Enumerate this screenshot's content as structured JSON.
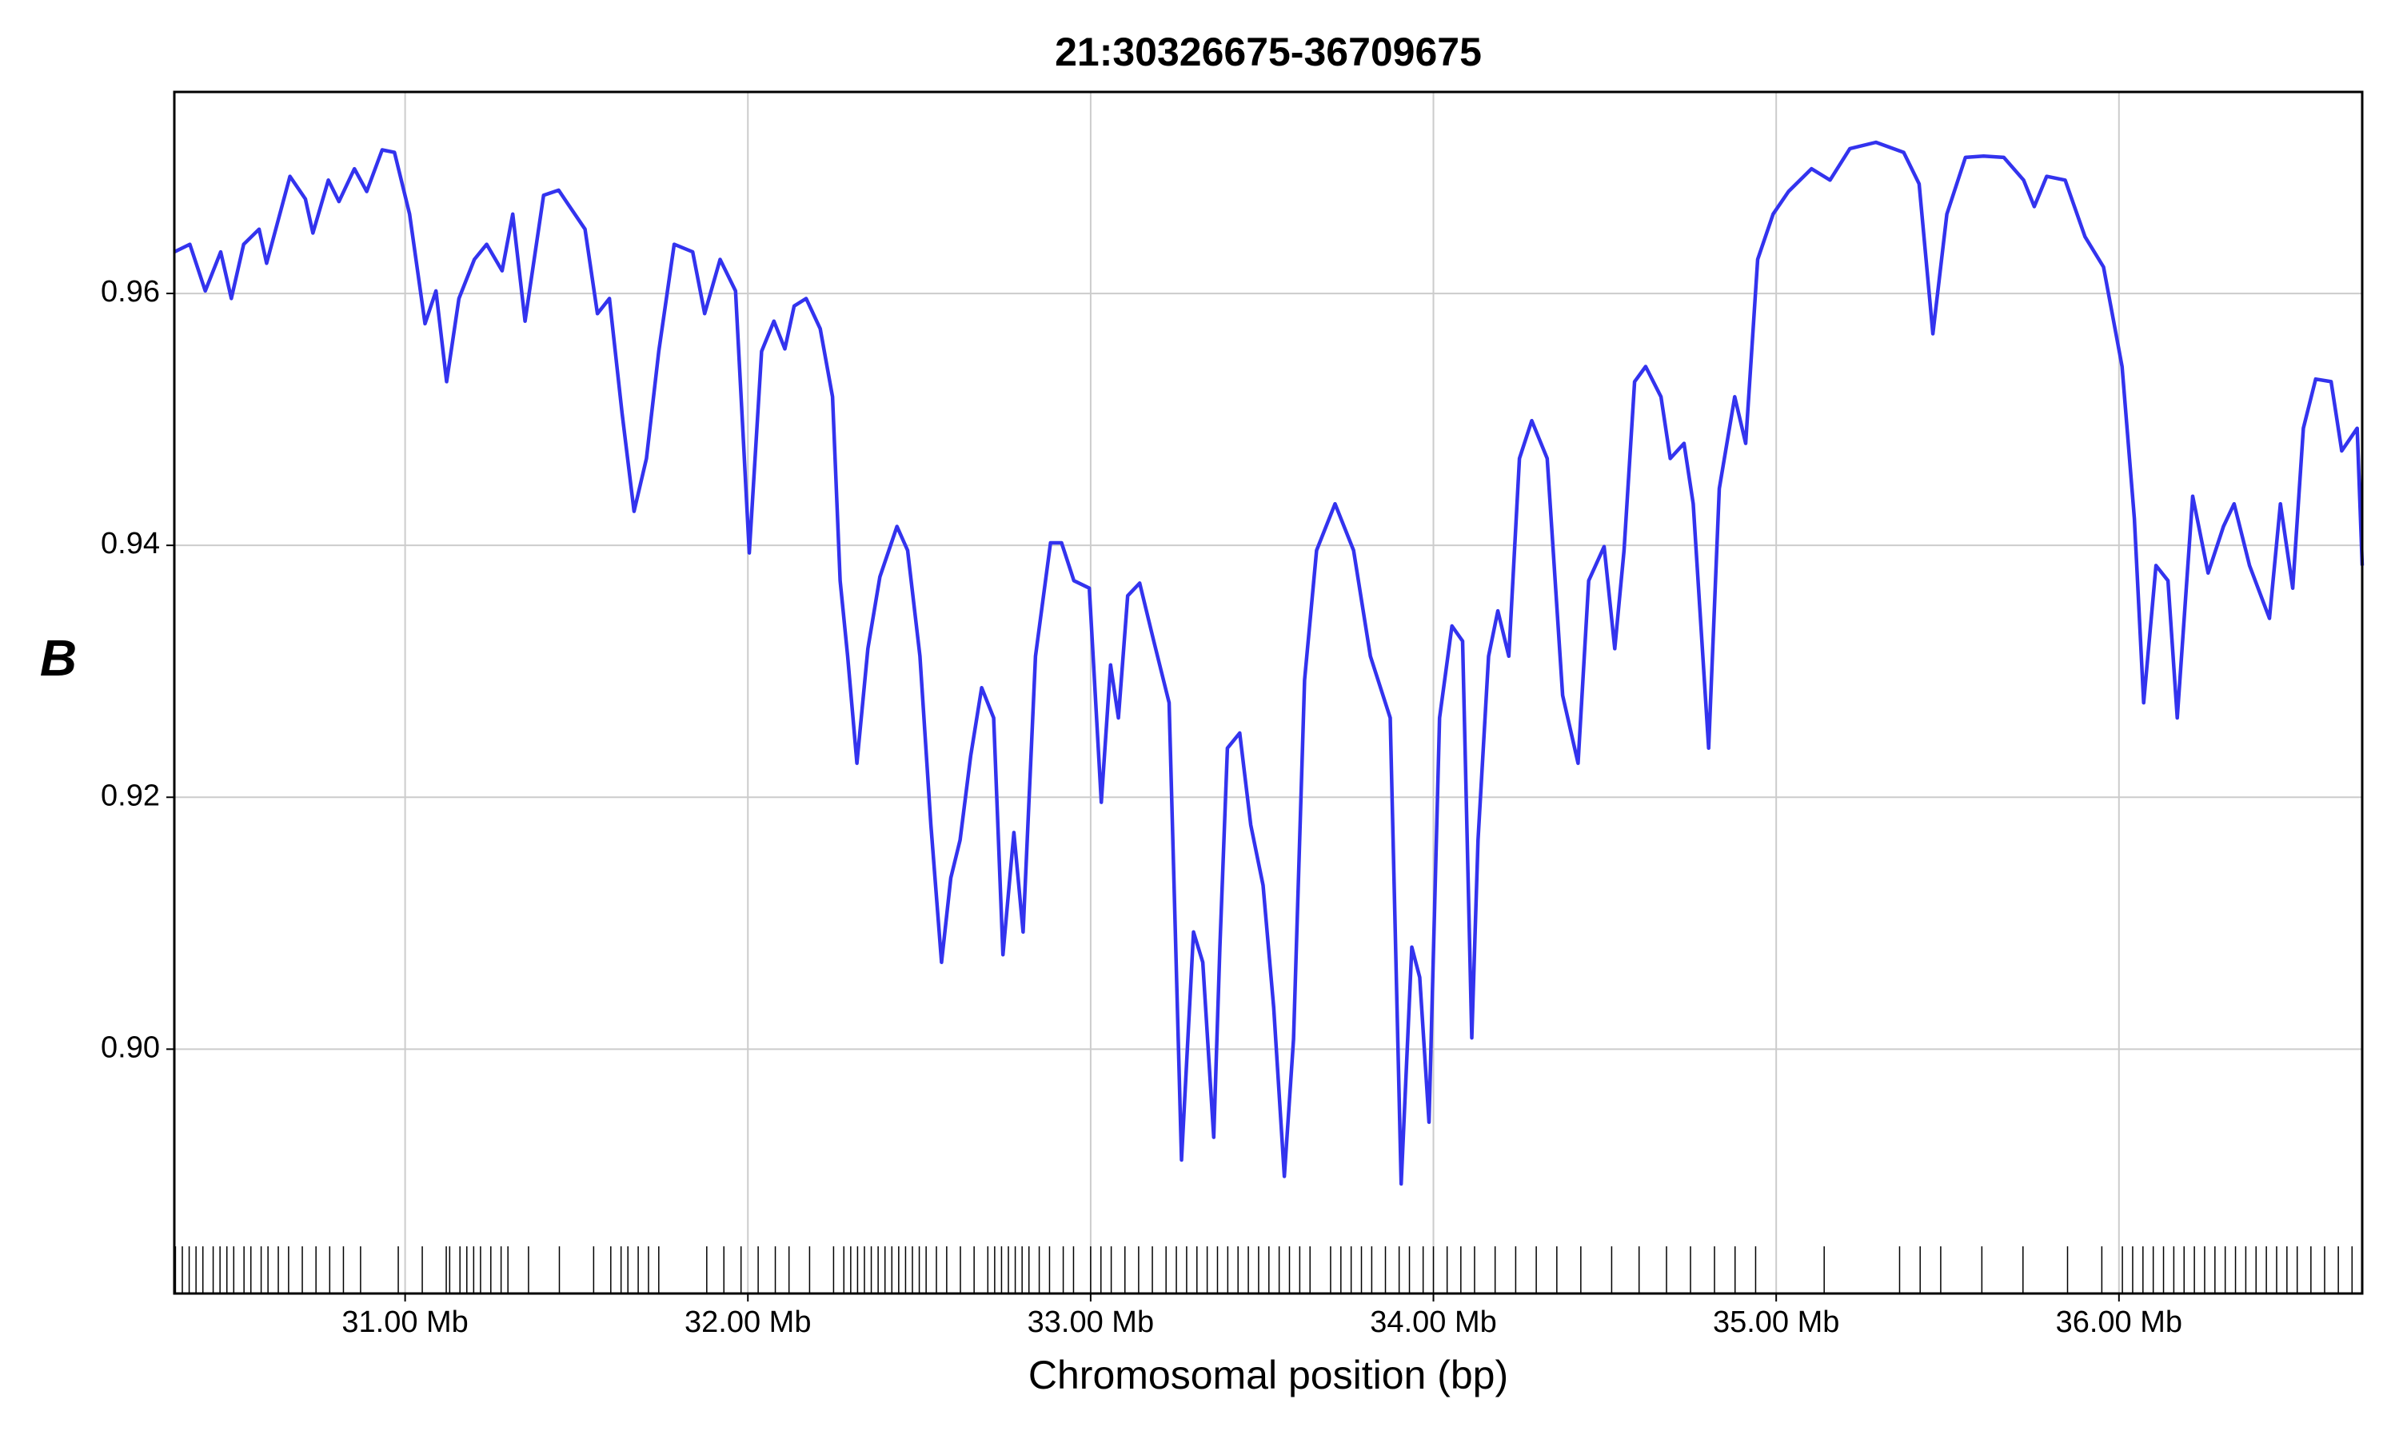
{
  "chart_data": {
    "type": "line",
    "title": "21:30326675-36709675",
    "xlabel": "Chromosomal position (bp)",
    "ylabel": "B",
    "xlim": [
      30326675,
      36709675
    ],
    "ylim": [
      0.8806,
      0.976
    ],
    "xticks": [
      {
        "value": 31000000,
        "label": "31.00 Mb"
      },
      {
        "value": 32000000,
        "label": "32.00 Mb"
      },
      {
        "value": 33000000,
        "label": "33.00 Mb"
      },
      {
        "value": 34000000,
        "label": "34.00 Mb"
      },
      {
        "value": 35000000,
        "label": "35.00 Mb"
      },
      {
        "value": 36000000,
        "label": "36.00 Mb"
      }
    ],
    "yticks": [
      {
        "value": 0.9,
        "label": "0.90"
      },
      0.92,
      0.94,
      0.96
    ],
    "grid": true,
    "x": [
      30326675,
      30372000,
      30417000,
      30462000,
      30493000,
      30529000,
      30574000,
      30596000,
      30664000,
      30709000,
      30731000,
      30776000,
      30807000,
      30852000,
      30888000,
      30933000,
      30969000,
      31013000,
      31058000,
      31090000,
      31121000,
      31157000,
      31202000,
      31238000,
      31283000,
      31314000,
      31350000,
      31404000,
      31448000,
      31480000,
      31525000,
      31561000,
      31596000,
      31633000,
      31668000,
      31704000,
      31740000,
      31785000,
      31839000,
      31874000,
      31919000,
      31964000,
      32004000,
      32040000,
      32076000,
      32108000,
      32135000,
      32170000,
      32211000,
      32247000,
      32269000,
      32291000,
      32318000,
      32350000,
      32385000,
      32435000,
      32466000,
      32502000,
      32534000,
      32565000,
      32592000,
      32619000,
      32650000,
      32682000,
      32717000,
      32744000,
      32776000,
      32803000,
      32839000,
      32883000,
      32915000,
      32951000,
      32996000,
      33031000,
      33058000,
      33081000,
      33108000,
      33143000,
      33184000,
      33229000,
      33265000,
      33300000,
      33327000,
      33359000,
      33377000,
      33399000,
      33435000,
      33467000,
      33503000,
      33534000,
      33565000,
      33592000,
      33624000,
      33659000,
      33713000,
      33767000,
      33816000,
      33874000,
      33906000,
      33937000,
      33960000,
      33987000,
      34018000,
      34054000,
      34085000,
      34112000,
      34130000,
      34161000,
      34188000,
      34220000,
      34251000,
      34287000,
      34332000,
      34377000,
      34422000,
      34453000,
      34498000,
      34529000,
      34556000,
      34587000,
      34619000,
      34664000,
      34691000,
      34731000,
      34758000,
      34803000,
      34834000,
      34879000,
      34911000,
      34946000,
      34991000,
      35036000,
      35103000,
      35157000,
      35215000,
      35291000,
      35372000,
      35417000,
      35457000,
      35498000,
      35552000,
      35605000,
      35664000,
      35722000,
      35753000,
      35789000,
      35843000,
      35901000,
      35955000,
      36009000,
      36045000,
      36072000,
      36108000,
      36143000,
      36170000,
      36215000,
      36260000,
      36305000,
      36336000,
      36381000,
      36439000,
      36471000,
      36507000,
      36538000,
      36574000,
      36619000,
      36650000,
      36695000,
      36709675
    ],
    "series": [
      {
        "color": "#3333ee",
        "values": [
          0.9633,
          0.9639,
          0.9602,
          0.9633,
          0.9596,
          0.9639,
          0.9651,
          0.9624,
          0.9693,
          0.9675,
          0.9648,
          0.969,
          0.9673,
          0.9699,
          0.9681,
          0.9714,
          0.9712,
          0.9663,
          0.9576,
          0.9602,
          0.953,
          0.9596,
          0.9627,
          0.9639,
          0.9618,
          0.9663,
          0.9578,
          0.9678,
          0.9682,
          0.9669,
          0.9651,
          0.9584,
          0.9596,
          0.9505,
          0.9427,
          0.9469,
          0.9554,
          0.9639,
          0.9633,
          0.9584,
          0.9627,
          0.9602,
          0.9394,
          0.9554,
          0.9578,
          0.9556,
          0.959,
          0.9596,
          0.9572,
          0.9518,
          0.9372,
          0.9312,
          0.9227,
          0.9318,
          0.9375,
          0.9415,
          0.9396,
          0.9312,
          0.9178,
          0.9069,
          0.9136,
          0.9166,
          0.9233,
          0.9287,
          0.9263,
          0.9075,
          0.9172,
          0.9093,
          0.9312,
          0.9402,
          0.9402,
          0.9372,
          0.9366,
          0.9196,
          0.9305,
          0.9263,
          0.936,
          0.937,
          0.9324,
          0.9275,
          0.8912,
          0.9093,
          0.9069,
          0.893,
          0.9081,
          0.9239,
          0.9251,
          0.9178,
          0.913,
          0.9033,
          0.8899,
          0.9008,
          0.9293,
          0.9396,
          0.9433,
          0.9396,
          0.9312,
          0.9263,
          0.8893,
          0.9081,
          0.9057,
          0.8942,
          0.9263,
          0.9336,
          0.9324,
          0.9009,
          0.9166,
          0.9312,
          0.9348,
          0.9312,
          0.9469,
          0.9499,
          0.9469,
          0.9281,
          0.9227,
          0.9372,
          0.9399,
          0.9318,
          0.9396,
          0.953,
          0.9542,
          0.9518,
          0.9469,
          0.9481,
          0.9433,
          0.9239,
          0.9445,
          0.9518,
          0.9481,
          0.9627,
          0.9663,
          0.9681,
          0.9699,
          0.969,
          0.9715,
          0.972,
          0.9712,
          0.9687,
          0.9568,
          0.9663,
          0.9708,
          0.9709,
          0.9708,
          0.969,
          0.9669,
          0.9693,
          0.969,
          0.9645,
          0.9621,
          0.9542,
          0.9421,
          0.9275,
          0.9384,
          0.9372,
          0.9263,
          0.9439,
          0.9378,
          0.9415,
          0.9433,
          0.9384,
          0.9342,
          0.9433,
          0.9366,
          0.9493,
          0.9532,
          0.953,
          0.9475,
          0.9493,
          0.9384
        ]
      }
    ],
    "sites": [
      30330000,
      30350000,
      30370000,
      30390000,
      30410000,
      30440000,
      30460000,
      30480000,
      30500000,
      30530000,
      30550000,
      30580000,
      30600000,
      30630000,
      30660000,
      30700000,
      30740000,
      30780000,
      30820000,
      30870000,
      30980000,
      31050000,
      31120000,
      31130000,
      31160000,
      31180000,
      31200000,
      31220000,
      31250000,
      31280000,
      31300000,
      31360000,
      31450000,
      31550000,
      31600000,
      31630000,
      31650000,
      31680000,
      31710000,
      31740000,
      31880000,
      31930000,
      31980000,
      32030000,
      32080000,
      32120000,
      32180000,
      32250000,
      32280000,
      32300000,
      32320000,
      32340000,
      32360000,
      32380000,
      32400000,
      32420000,
      32440000,
      32460000,
      32480000,
      32500000,
      32520000,
      32550000,
      32580000,
      32620000,
      32660000,
      32700000,
      32720000,
      32740000,
      32760000,
      32780000,
      32800000,
      32820000,
      32850000,
      32880000,
      32920000,
      32950000,
      33000000,
      33030000,
      33060000,
      33100000,
      33140000,
      33180000,
      33220000,
      33250000,
      33280000,
      33310000,
      33340000,
      33370000,
      33400000,
      33430000,
      33460000,
      33490000,
      33520000,
      33550000,
      33580000,
      33610000,
      33640000,
      33700000,
      33730000,
      33760000,
      33790000,
      33820000,
      33860000,
      33900000,
      33930000,
      33970000,
      34000000,
      34040000,
      34080000,
      34120000,
      34180000,
      34240000,
      34300000,
      34360000,
      34430000,
      34520000,
      34600000,
      34680000,
      34750000,
      34820000,
      34880000,
      34940000,
      35140000,
      35360000,
      35420000,
      35480000,
      35600000,
      35720000,
      35850000,
      35950000,
      36010000,
      36040000,
      36070000,
      36100000,
      36130000,
      36160000,
      36190000,
      36220000,
      36250000,
      36280000,
      36310000,
      36340000,
      36370000,
      36400000,
      36430000,
      36460000,
      36490000,
      36520000,
      36560000,
      36600000,
      36640000,
      36680000
    ]
  }
}
